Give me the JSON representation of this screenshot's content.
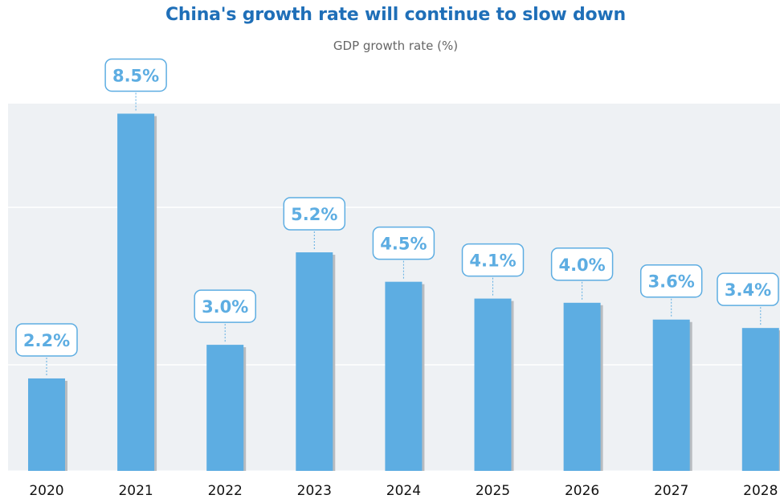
{
  "chart_data": {
    "type": "bar",
    "title": "China's growth rate will continue to slow down",
    "subtitle": "GDP growth rate (%)",
    "categories": [
      "2020",
      "2021",
      "2022",
      "2023",
      "2024",
      "2025",
      "2026",
      "2027",
      "2028"
    ],
    "values": [
      2.2,
      8.5,
      3.0,
      5.2,
      4.5,
      4.1,
      4.0,
      3.6,
      3.4
    ],
    "data_labels": [
      "2.2%",
      "8.5%",
      "3.0%",
      "5.2%",
      "4.5%",
      "4.1%",
      "4.0%",
      "3.6%",
      "3.4%"
    ],
    "xlabel": "",
    "ylabel": "",
    "ylim": [
      0,
      9
    ],
    "grid": true,
    "colors": {
      "bar": "#5dade2",
      "bar_shadow": "#b8bcc0",
      "plot_bg": "#eef1f4",
      "gridline": "#ffffff",
      "label_text": "#5dade2",
      "label_border": "#5dade2",
      "title": "#1f6fb8",
      "subtitle": "#666666"
    }
  }
}
